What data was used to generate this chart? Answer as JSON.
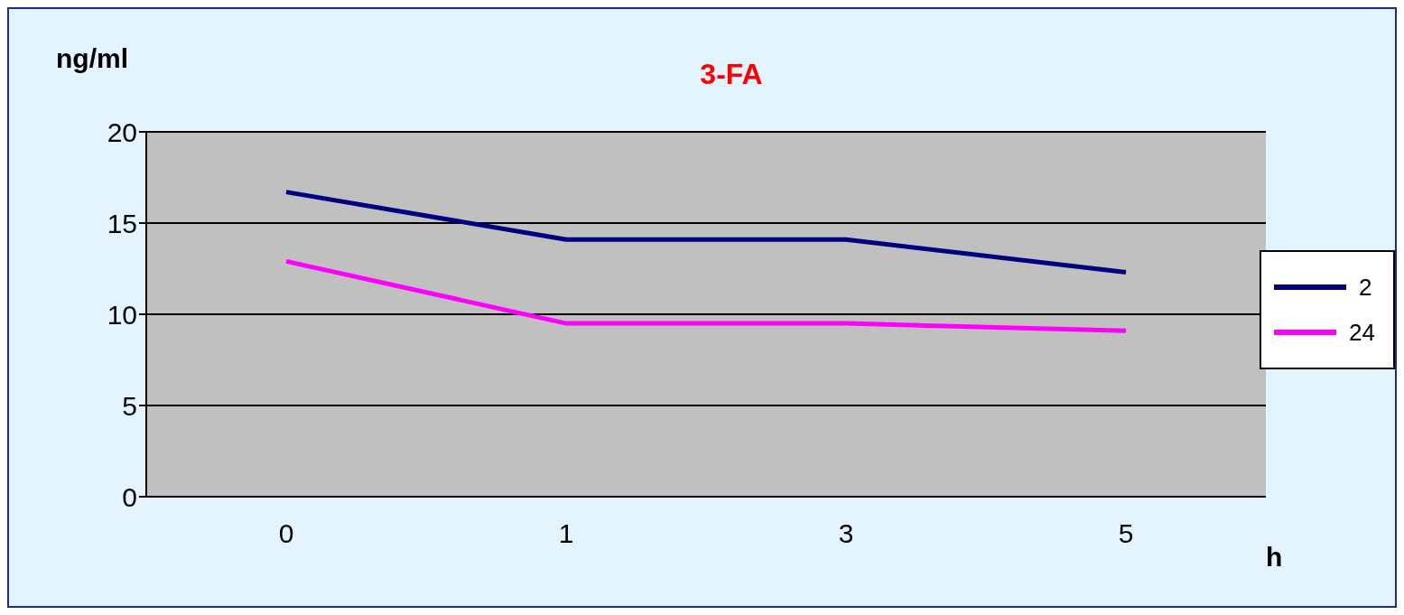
{
  "chart_data": {
    "type": "line",
    "title": "3-FA",
    "xlabel": "h",
    "ylabel": "ng/ml",
    "categories": [
      "0",
      "1",
      "3",
      "5"
    ],
    "series": [
      {
        "name": "2",
        "color": "#000080",
        "values": [
          16.7,
          14.1,
          14.1,
          12.3
        ]
      },
      {
        "name": "24",
        "color": "#ff00ff",
        "values": [
          12.9,
          9.5,
          9.5,
          9.1
        ]
      }
    ],
    "ylim": [
      0,
      20
    ],
    "yticks": [
      0,
      5,
      10,
      15,
      20
    ],
    "grid": "y",
    "legend": "right",
    "marker": "none",
    "line_style": "solid"
  }
}
